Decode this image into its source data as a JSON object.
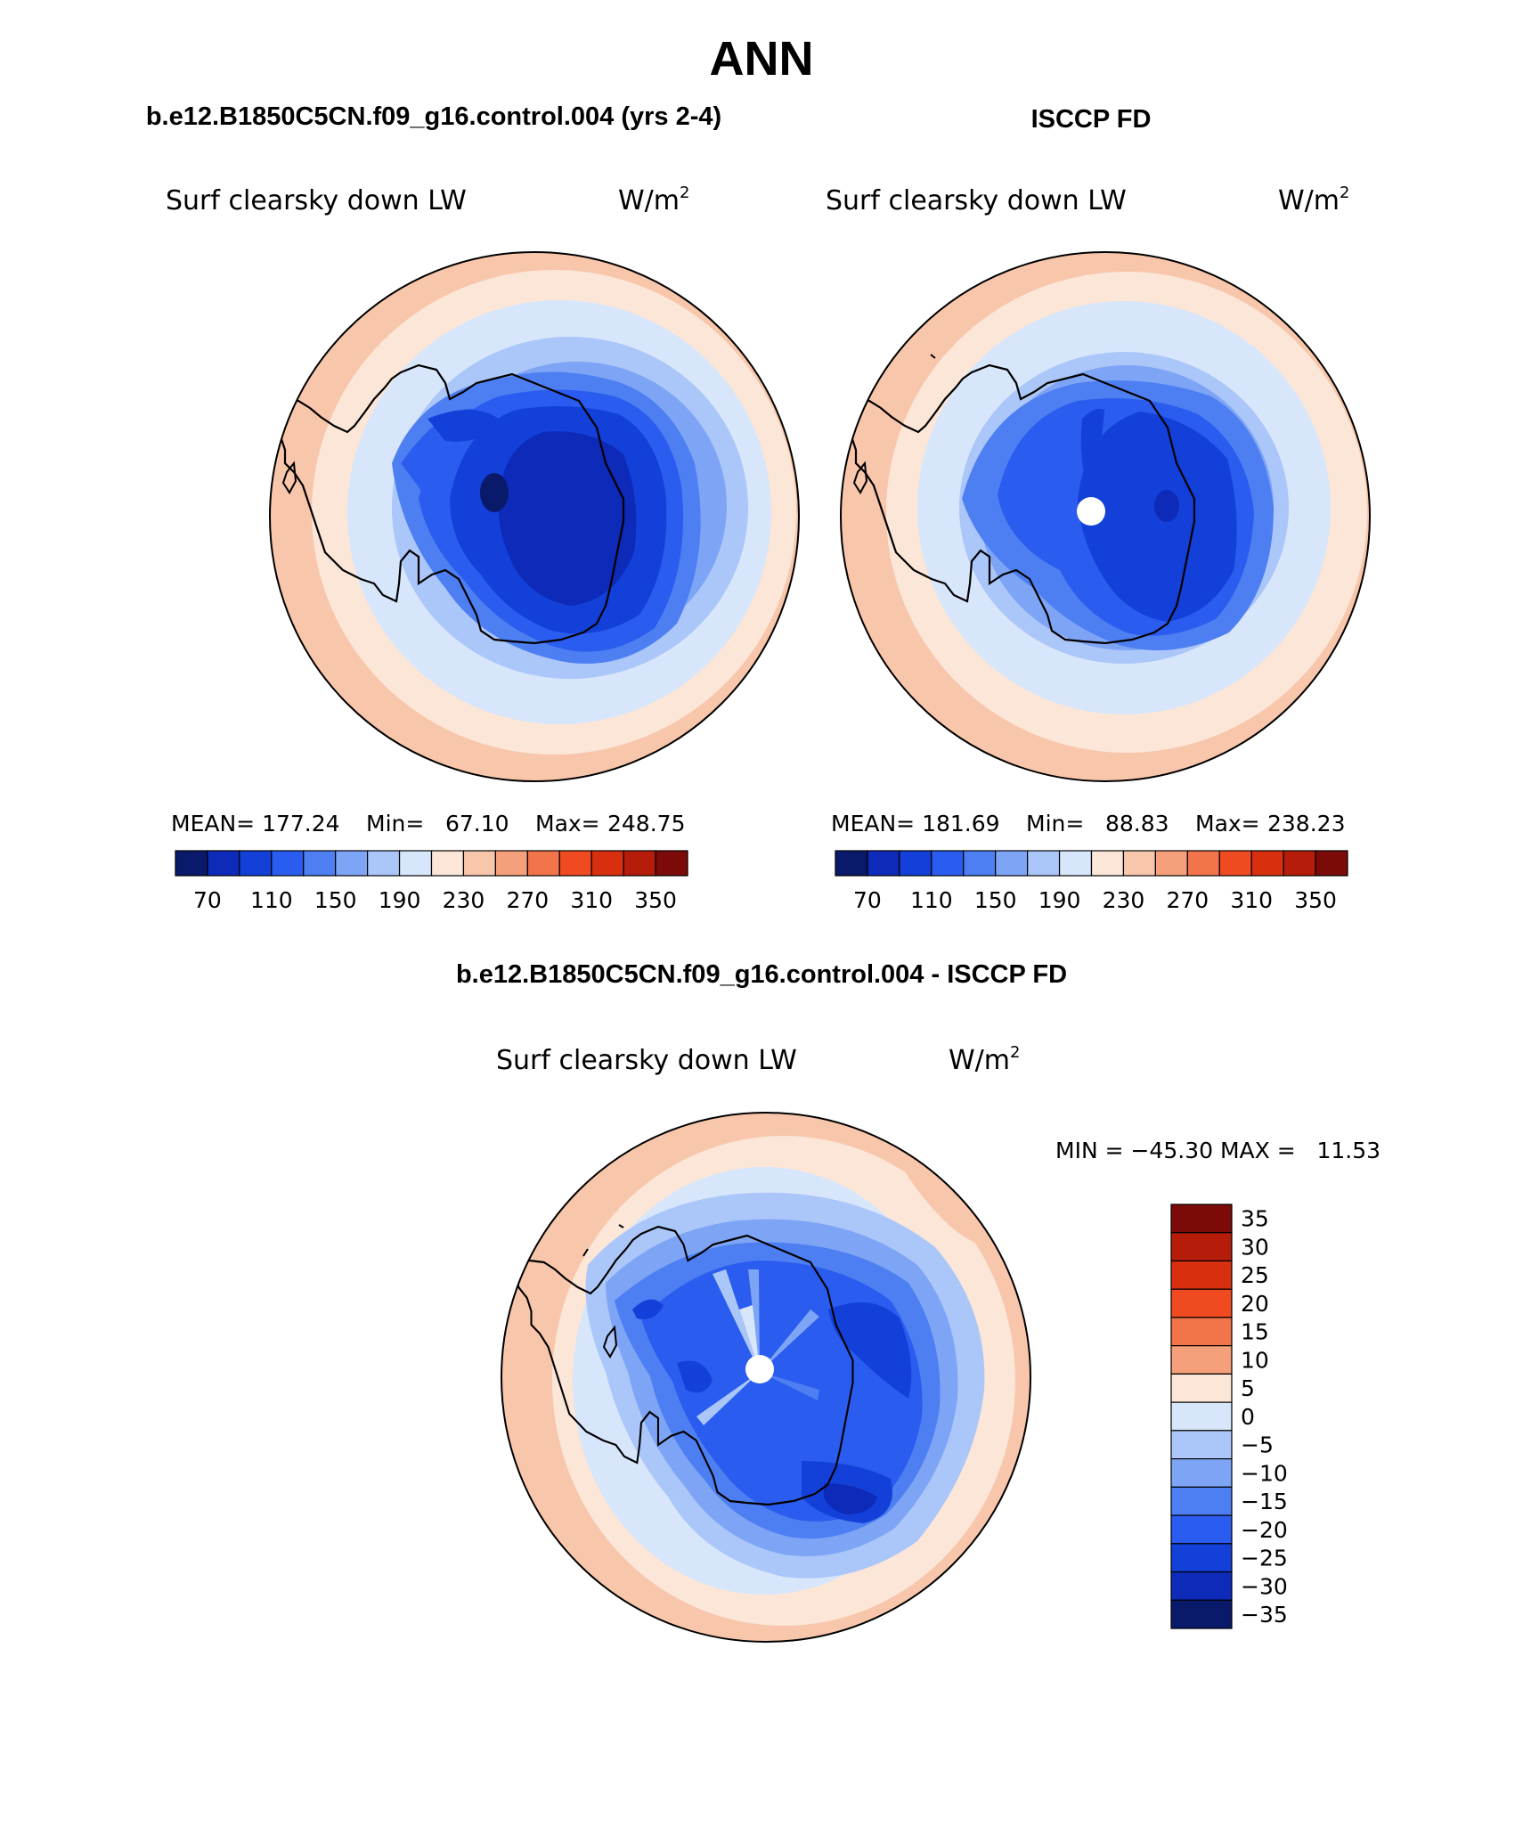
{
  "page_title": "ANN",
  "panels": {
    "model": {
      "case_title": "b.e12.B1850C5CN.f09_g16.control.004 (yrs 2-4)",
      "variable": "Surf clearsky down LW",
      "units_base": "W/m",
      "units_exp": "2",
      "stats": {
        "mean_label": "MEAN=",
        "mean": "177.24",
        "min_label": "Min=",
        "min": "67.10",
        "max_label": "Max=",
        "max": "248.75"
      }
    },
    "obs": {
      "case_title": "ISCCP FD",
      "variable": "Surf clearsky down LW",
      "units_base": "W/m",
      "units_exp": "2",
      "stats": {
        "mean_label": "MEAN=",
        "mean": "181.69",
        "min_label": "Min=",
        "min": "88.83",
        "max_label": "Max=",
        "max": "238.23"
      }
    },
    "diff": {
      "case_title": "b.e12.B1850C5CN.f09_g16.control.004 - ISCCP FD",
      "variable": "Surf clearsky down LW",
      "units_base": "W/m",
      "units_exp": "2",
      "minmax": "MIN = −45.30 MAX =   11.53"
    }
  },
  "abs_colorbar": {
    "colors": [
      "#0a1a6b",
      "#0d2ab8",
      "#1240d8",
      "#2a5cef",
      "#4d7ff2",
      "#7ea5f5",
      "#abc6f8",
      "#d7e6fb",
      "#fbe6d8",
      "#f8c6ab",
      "#f5a07a",
      "#f2744a",
      "#ef4a20",
      "#d8300e",
      "#b61c0a",
      "#7c0a08"
    ],
    "tick_labels": [
      "70",
      "110",
      "150",
      "190",
      "230",
      "270",
      "310",
      "350"
    ]
  },
  "diff_colorbar": {
    "colors_top_to_bottom": [
      "#7c0a08",
      "#b61c0a",
      "#d8300e",
      "#ef4a20",
      "#f2744a",
      "#f5a07a",
      "#fbe6d8",
      "#d7e6fb",
      "#abc6f8",
      "#7ea5f5",
      "#4d7ff2",
      "#2a5cef",
      "#1240d8",
      "#0d2ab8",
      "#0a1a6b"
    ],
    "tick_labels": [
      "35",
      "30",
      "25",
      "20",
      "15",
      "10",
      "5",
      "0",
      "−5",
      "−10",
      "−15",
      "−20",
      "−25",
      "−30",
      "−35"
    ]
  }
}
